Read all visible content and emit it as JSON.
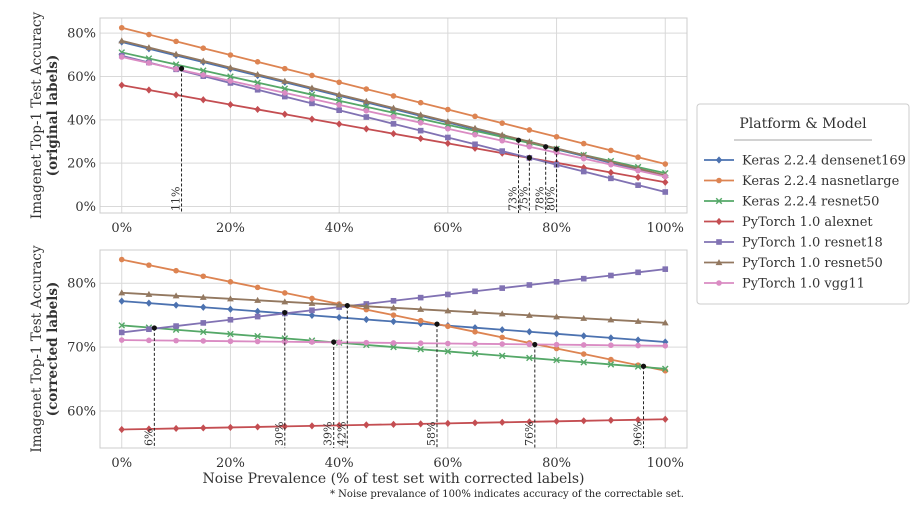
{
  "footnote": "* Noise prevalance of 100% indicates accuracy of the correctable set.",
  "legend": {
    "title": "Platform & Model",
    "entries": [
      {
        "label": "Keras 2.2.4 densenet169",
        "color": "#4c72b0",
        "marker": "diamond"
      },
      {
        "label": "Keras 2.2.4 nasnetlarge",
        "color": "#dd8452",
        "marker": "circle"
      },
      {
        "label": "Keras 2.2.4 resnet50",
        "color": "#55a868",
        "marker": "x"
      },
      {
        "label": "PyTorch 1.0 alexnet",
        "color": "#c44e52",
        "marker": "diamond"
      },
      {
        "label": "PyTorch 1.0 resnet18",
        "color": "#8172b3",
        "marker": "square"
      },
      {
        "label": "PyTorch 1.0 resnet50",
        "color": "#937860",
        "marker": "triangle"
      },
      {
        "label": "PyTorch 1.0 vgg11",
        "color": "#da8bc3",
        "marker": "circle"
      }
    ]
  },
  "chart_data": [
    {
      "type": "line",
      "ylabel_line1": "Imagenet Top-1 Test Accuracy",
      "ylabel_line2": "(original labels)",
      "xlabel": "",
      "x": [
        0,
        5,
        10,
        15,
        20,
        25,
        30,
        35,
        40,
        45,
        50,
        55,
        60,
        65,
        70,
        75,
        80,
        85,
        90,
        95,
        100
      ],
      "xlim": [
        -4,
        104
      ],
      "ylim": [
        -3,
        87
      ],
      "xticks": [
        0,
        20,
        40,
        60,
        80,
        100
      ],
      "xtick_labels": [
        "0%",
        "20%",
        "40%",
        "60%",
        "80%",
        "100%"
      ],
      "yticks": [
        0,
        20,
        40,
        60,
        80
      ],
      "ytick_labels": [
        "0%",
        "20%",
        "40%",
        "60%",
        "80%"
      ],
      "grid": true,
      "series": [
        {
          "name": "Keras 2.2.4 densenet169",
          "start": 75.9,
          "end": 14.0
        },
        {
          "name": "Keras 2.2.4 nasnetlarge",
          "start": 82.5,
          "end": 19.6
        },
        {
          "name": "Keras 2.2.4 resnet50",
          "start": 71.1,
          "end": 15.4
        },
        {
          "name": "PyTorch 1.0 alexnet",
          "start": 56.0,
          "end": 11.2
        },
        {
          "name": "PyTorch 1.0 resnet18",
          "start": 69.6,
          "end": 6.7
        },
        {
          "name": "PyTorch 1.0 resnet50",
          "start": 76.5,
          "end": 14.4
        },
        {
          "name": "PyTorch 1.0 vgg11",
          "start": 69.0,
          "end": 13.8
        }
      ],
      "markers": [
        {
          "x": 11,
          "y": 63.7,
          "label": "11%"
        },
        {
          "x": 73,
          "y": 30.6,
          "label": "73%"
        },
        {
          "x": 75,
          "y": 22.5,
          "label": "75%"
        },
        {
          "x": 78,
          "y": 27.6,
          "label": "78%"
        },
        {
          "x": 80,
          "y": 26.5,
          "label": "80%"
        }
      ]
    },
    {
      "type": "line",
      "ylabel_line1": "Imagenet Top-1 Test Accuracy",
      "ylabel_line2": "(corrected labels)",
      "xlabel": "Noise Prevalence (% of test set with corrected labels)",
      "x": [
        0,
        5,
        10,
        15,
        20,
        25,
        30,
        35,
        40,
        45,
        50,
        55,
        60,
        65,
        70,
        75,
        80,
        85,
        90,
        95,
        100
      ],
      "xlim": [
        -4,
        104
      ],
      "ylim": [
        54.2,
        85.2
      ],
      "xticks": [
        0,
        20,
        40,
        60,
        80,
        100
      ],
      "xtick_labels": [
        "0%",
        "20%",
        "40%",
        "60%",
        "80%",
        "100%"
      ],
      "yticks": [
        60,
        70,
        80
      ],
      "ytick_labels": [
        "60%",
        "70%",
        "80%"
      ],
      "grid": true,
      "series": [
        {
          "name": "Keras 2.2.4 densenet169",
          "start": 77.2,
          "end": 70.8
        },
        {
          "name": "Keras 2.2.4 nasnetlarge",
          "start": 83.7,
          "end": 66.3
        },
        {
          "name": "Keras 2.2.4 resnet50",
          "start": 73.4,
          "end": 66.6
        },
        {
          "name": "PyTorch 1.0 alexnet",
          "start": 57.1,
          "end": 58.7
        },
        {
          "name": "PyTorch 1.0 resnet18",
          "start": 72.3,
          "end": 82.2
        },
        {
          "name": "PyTorch 1.0 resnet50",
          "start": 78.5,
          "end": 73.8
        },
        {
          "name": "PyTorch 1.0 vgg11",
          "start": 71.1,
          "end": 70.2
        }
      ],
      "markers": [
        {
          "x": 6,
          "y": 73.0,
          "label": "6%"
        },
        {
          "x": 30,
          "y": 75.4,
          "label": "30%"
        },
        {
          "x": 39,
          "y": 70.8,
          "label": "39%"
        },
        {
          "x": 41.5,
          "y": 76.5,
          "label": "42%"
        },
        {
          "x": 58,
          "y": 73.6,
          "label": "58%"
        },
        {
          "x": 76,
          "y": 70.4,
          "label": "76%"
        },
        {
          "x": 96,
          "y": 67.0,
          "label": "96%"
        }
      ]
    }
  ]
}
